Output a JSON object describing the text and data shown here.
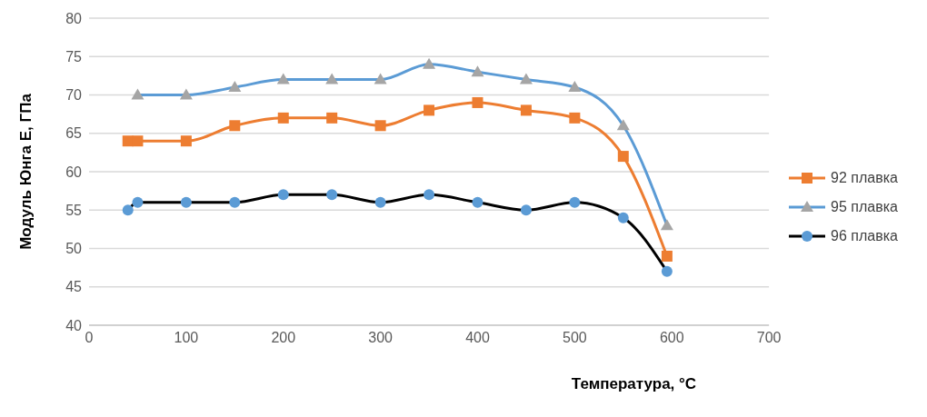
{
  "chart_data": {
    "type": "line",
    "xlabel": "Температура, °C",
    "ylabel": "Модуль Юнга Е, ГПа",
    "xlim": [
      0,
      700
    ],
    "xticks": [
      0,
      100,
      200,
      300,
      400,
      500,
      600,
      700
    ],
    "ylim": [
      40,
      80
    ],
    "yticks": [
      40,
      45,
      50,
      55,
      60,
      65,
      70,
      75,
      80
    ],
    "grid": "y",
    "legend": "right",
    "series": [
      {
        "name": "92 плавка",
        "color": "#ed7d31",
        "marker": "square",
        "colors": [
          "#ed7d31",
          "#ed7d31",
          "#ed7d31",
          "#ed7d31",
          "#ed7d31",
          "#ed7d31",
          "#ed7d31",
          "#ed7d31",
          "#ed7d31",
          "#ed7d31",
          "#ed7d31",
          "#ed7d31",
          "#ed7d31"
        ],
        "x": [
          40,
          50,
          100,
          150,
          200,
          250,
          300,
          350,
          400,
          450,
          500,
          550,
          595
        ],
        "values": [
          64,
          64,
          64,
          66,
          67,
          67,
          66,
          68,
          69,
          68,
          67,
          62,
          49
        ]
      },
      {
        "name": "95 плавка",
        "color": "#5b9bd5",
        "marker": "triangle",
        "colors": [
          "#a5a5a5",
          "#a5a5a5",
          "#a5a5a5",
          "#a5a5a5",
          "#a5a5a5",
          "#a5a5a5",
          "#a5a5a5",
          "#a5a5a5",
          "#a5a5a5",
          "#a5a5a5",
          "#a5a5a5",
          "#a5a5a5"
        ],
        "x": [
          50,
          100,
          150,
          200,
          250,
          300,
          350,
          400,
          450,
          500,
          550,
          595
        ],
        "values": [
          70,
          70,
          71,
          72,
          72,
          72,
          74,
          73,
          72,
          71,
          66,
          53
        ]
      },
      {
        "name": "96 плавка",
        "color": "#000000",
        "marker": "circle",
        "colors": [
          "#5b9bd5",
          "#5b9bd5",
          "#5b9bd5",
          "#5b9bd5",
          "#5b9bd5",
          "#5b9bd5",
          "#5b9bd5",
          "#5b9bd5",
          "#5b9bd5",
          "#5b9bd5",
          "#5b9bd5",
          "#5b9bd5",
          "#5b9bd5"
        ],
        "x": [
          40,
          50,
          100,
          150,
          200,
          250,
          300,
          350,
          400,
          450,
          500,
          550,
          595
        ],
        "values": [
          55,
          56,
          56,
          56,
          57,
          57,
          56,
          57,
          56,
          55,
          56,
          54,
          47
        ]
      }
    ]
  }
}
